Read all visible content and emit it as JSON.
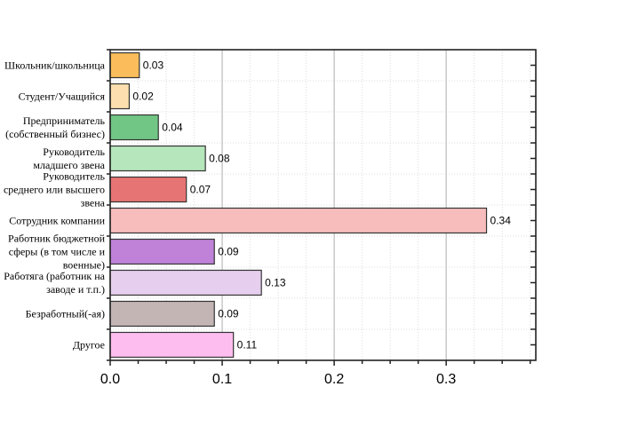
{
  "chart_data": {
    "type": "bar",
    "orientation": "horizontal",
    "title": "",
    "xlabel": "",
    "ylabel": "",
    "xlim": [
      0,
      0.38
    ],
    "xticks": [
      "0.0",
      "0.1",
      "0.2",
      "0.3"
    ],
    "xtick_values": [
      0,
      0.1,
      0.2,
      0.3
    ],
    "grid": true,
    "categories": [
      [
        "Школьник/школьница"
      ],
      [
        "Студент/Учащийся"
      ],
      [
        "Предприниматель",
        "(собственный бизнес)"
      ],
      [
        "Руководитель",
        "младшего звена"
      ],
      [
        "Руководитель",
        "среднего или высшего",
        "звена"
      ],
      [
        "Сотрудник компании"
      ],
      [
        "Работник бюджетной",
        "сферы (в том числе и",
        "военные)"
      ],
      [
        "Работяга (работник на",
        "заводе и т.п.)"
      ],
      [
        "Безработный(-ая)"
      ],
      [
        "Другое"
      ]
    ],
    "values": [
      0.026,
      0.017,
      0.043,
      0.085,
      0.068,
      0.336,
      0.093,
      0.135,
      0.093,
      0.11
    ],
    "labels": [
      "0.03",
      "0.02",
      "0.04",
      "0.08",
      "0.07",
      "0.34",
      "0.09",
      "0.13",
      "0.09",
      "0.11"
    ],
    "colors": [
      "#fbbd5b",
      "#fddfaf",
      "#71c685",
      "#b6e6bb",
      "#e77474",
      "#f7bcbc",
      "#bf82d8",
      "#e6cfee",
      "#c4b5b5",
      "#fdbdee"
    ]
  }
}
